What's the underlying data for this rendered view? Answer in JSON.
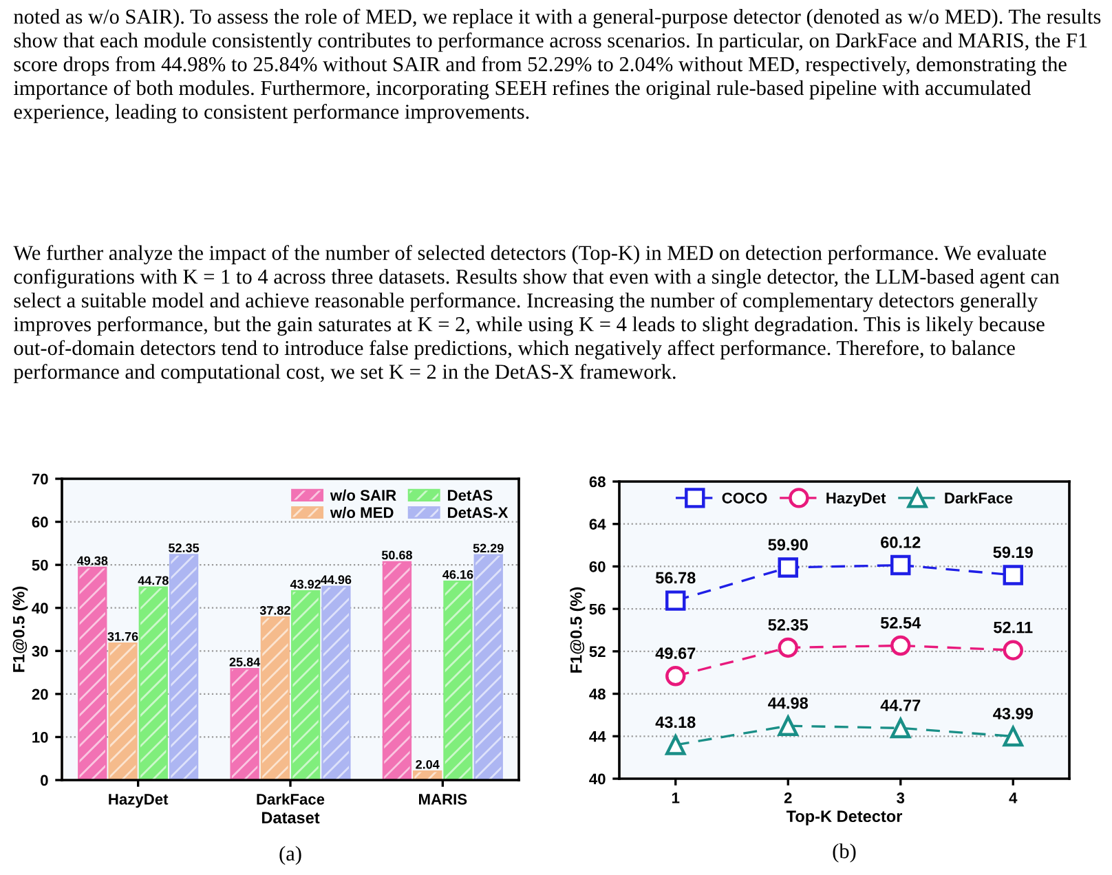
{
  "chart_data": [
    {
      "type": "bar",
      "xlabel": "Dataset",
      "ylabel": "F1@0.5 (%)",
      "categories": [
        "HazyDet",
        "DarkFace",
        "MARIS"
      ],
      "series": [
        {
          "name": "w/o SAIR",
          "color": "#f272b4",
          "values": [
            49.38,
            25.84,
            50.68
          ]
        },
        {
          "name": "w/o MED",
          "color": "#f5bb8c",
          "values": [
            31.76,
            37.82,
            2.04
          ]
        },
        {
          "name": "DetAS",
          "color": "#80ee7c",
          "values": [
            44.78,
            43.92,
            46.16
          ]
        },
        {
          "name": "DetAS-X",
          "color": "#adb6f2",
          "values": [
            52.35,
            44.96,
            52.29
          ]
        }
      ],
      "ylim": [
        0,
        70
      ],
      "yticks": [
        0,
        10,
        20,
        30,
        40,
        50,
        60,
        70
      ],
      "grid": "y",
      "legend": "top right",
      "data_labels": true,
      "annotations": [
        "noted as w/o SAIR). To assess the role of MED, we replace it with a general-purpose detector (denoted as w/o MED). The results show that each module consistently contributes to performance across scenarios. In particular, on DarkFace and MARIS, the F1 score drops from 44.98% to 25.84% without SAIR and from 52.29% to 2.04% without MED, respectively, demonstrating the importance of both modules. Furthermore, incorporating SEEH refines the original rule-based pipeline with accumulated experience, leading to consistent performance improvements.",
        "We further analyze the impact of the number of selected detectors (Top-K) in MED on detection performance. We evaluate configurations with K = 1 to 4 across three datasets. Results show that even with a single detector, the LLM-based agent can select a suitable model and achieve reasonable performance. Increasing the number of complementary detectors generally improves performance, but the gain saturates at K = 2, while using K = 4 leads to slight degradation. This is likely because out-of-domain detectors tend to introduce false predictions, which negatively affect performance. Therefore, to balance performance and computational cost, we set K = 2 in the DetAS-X framework.",
        "(a)"
      ]
    },
    {
      "type": "line",
      "xlabel": "Top-K Detector",
      "ylabel": "F1@0.5 (%)",
      "x": [
        1,
        2,
        3,
        4
      ],
      "series": [
        {
          "name": "COCO",
          "color": "#1f1fe6",
          "marker": "square",
          "values": [
            56.78,
            59.9,
            60.12,
            59.19
          ],
          "value_labels": [
            "56.78",
            "59.90",
            "60.12",
            "59.19"
          ]
        },
        {
          "name": "HazyDet",
          "color": "#e8197c",
          "marker": "circle",
          "values": [
            49.67,
            52.35,
            52.54,
            52.11
          ],
          "value_labels": [
            "49.67",
            "52.35",
            "52.54",
            "52.11"
          ]
        },
        {
          "name": "DarkFace",
          "color": "#1a8f87",
          "marker": "triangle",
          "values": [
            43.18,
            44.98,
            44.77,
            43.99
          ],
          "value_labels": [
            "43.18",
            "44.98",
            "44.77",
            "43.99"
          ]
        }
      ],
      "xlim": [
        0.5,
        4.5
      ],
      "xticks": [
        1,
        2,
        3,
        4
      ],
      "ylim": [
        40,
        68
      ],
      "yticks": [
        40,
        44,
        48,
        52,
        56,
        60,
        64,
        68
      ],
      "grid": "y",
      "legend": "top",
      "line_style": "dashed",
      "data_labels": true,
      "annotations": [
        "(b)"
      ]
    }
  ]
}
